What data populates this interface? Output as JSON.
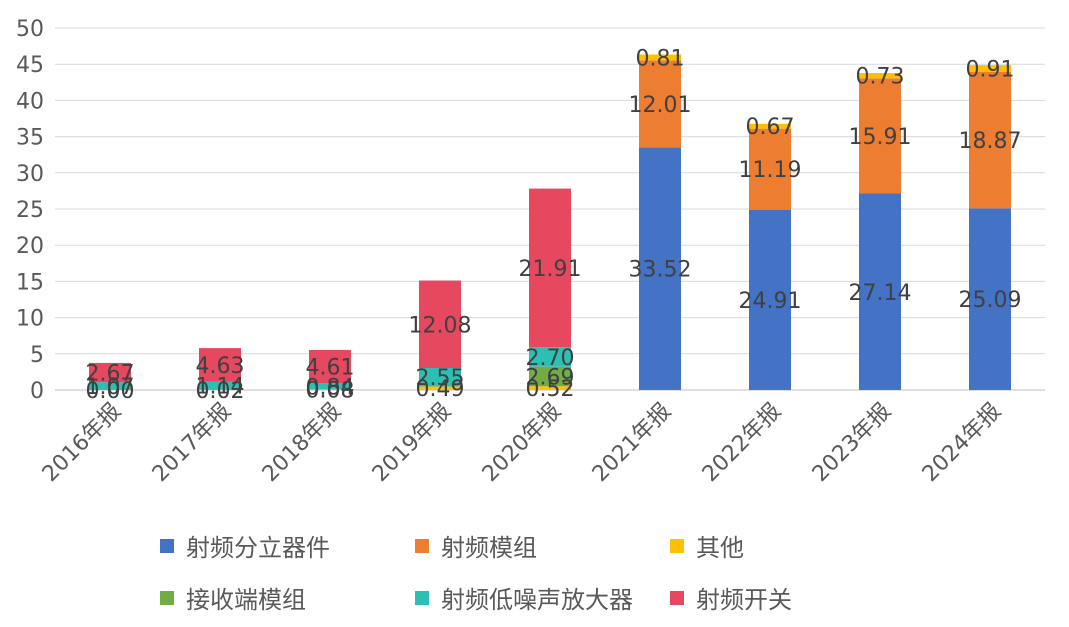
{
  "chart_data": {
    "type": "bar",
    "stacked": true,
    "categories": [
      "2016年报",
      "2017年报",
      "2018年报",
      "2019年报",
      "2020年报",
      "2021年报",
      "2022年报",
      "2023年报",
      "2024年报"
    ],
    "ylim": [
      0,
      50
    ],
    "yticks": [
      0,
      5,
      10,
      15,
      20,
      25,
      30,
      35,
      40,
      45,
      50
    ],
    "grid": true,
    "legend_position": "bottom",
    "series": [
      {
        "name": "射频分立器件",
        "color": "#4472C4",
        "values": [
          0,
          0,
          0,
          0,
          0,
          33.52,
          24.91,
          27.14,
          25.09
        ],
        "labels": [
          "",
          "",
          "",
          "",
          "",
          "33.52",
          "24.91",
          "27.14",
          "25.09"
        ]
      },
      {
        "name": "射频模组",
        "color": "#ED7D31",
        "values": [
          0,
          0,
          0,
          0,
          0,
          12.01,
          11.19,
          15.91,
          18.87
        ],
        "labels": [
          "",
          "",
          "",
          "",
          "",
          "12.01",
          "11.19",
          "15.91",
          "18.87"
        ]
      },
      {
        "name": "其他",
        "color": "#FFC000",
        "values": [
          0.0,
          0.02,
          0.08,
          0.49,
          0.52,
          0.81,
          0.67,
          0.73,
          0.91
        ],
        "labels": [
          "0.00",
          "0.02",
          "0.08",
          "0.49",
          "0.52",
          "0.81",
          "0.67",
          "0.73",
          "0.91"
        ]
      },
      {
        "name": "接收端模组",
        "color": "#70AD47",
        "values": [
          0,
          0,
          0,
          0,
          2.69,
          0,
          0,
          0,
          0
        ],
        "labels": [
          "",
          "",
          "",
          "",
          "2.69",
          "",
          "",
          "",
          ""
        ]
      },
      {
        "name": "射频低噪声放大器",
        "color": "#2EBFB4",
        "values": [
          1.07,
          1.14,
          0.84,
          2.55,
          2.7,
          0,
          0,
          0,
          0
        ],
        "labels": [
          "1.07",
          "1.14",
          "0.84",
          "2.55",
          "2.70",
          "",
          "",
          "",
          ""
        ]
      },
      {
        "name": "射频开关",
        "color": "#E5485F",
        "values": [
          2.67,
          4.63,
          4.61,
          12.08,
          21.91,
          0,
          0,
          0,
          0
        ],
        "labels": [
          "2.67",
          "4.63",
          "4.61",
          "12.08",
          "21.91",
          "",
          "",
          "",
          ""
        ]
      }
    ]
  }
}
